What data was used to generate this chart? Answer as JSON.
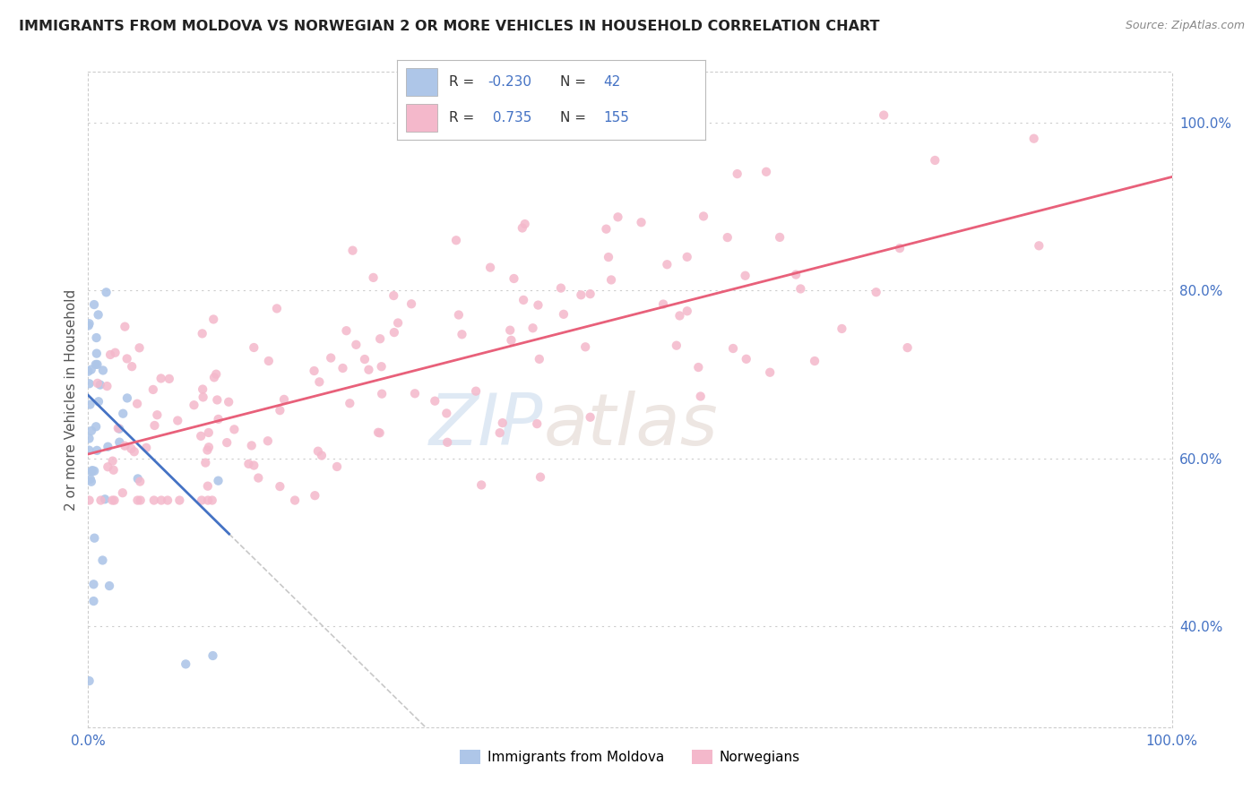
{
  "title": "IMMIGRANTS FROM MOLDOVA VS NORWEGIAN 2 OR MORE VEHICLES IN HOUSEHOLD CORRELATION CHART",
  "source": "Source: ZipAtlas.com",
  "ylabel": "2 or more Vehicles in Household",
  "legend_label1": "Immigrants from Moldova",
  "legend_label2": "Norwegians",
  "r1": -0.23,
  "n1": 42,
  "r2": 0.735,
  "n2": 155,
  "color_moldova": "#aec6e8",
  "color_norwegian": "#f4b8cb",
  "color_line_moldova": "#4472c4",
  "color_line_norwegian": "#e8607a",
  "color_dashed": "#c8c8c8",
  "watermark_zip": "ZIP",
  "watermark_atlas": "atlas",
  "background": "#ffffff",
  "xlim": [
    0.0,
    1.0
  ],
  "ylim": [
    0.28,
    1.06
  ],
  "ytick_vals": [
    0.4,
    0.6,
    0.8,
    1.0
  ],
  "ytick_labels": [
    "40.0%",
    "60.0%",
    "80.0%",
    "100.0%"
  ],
  "xtick_vals": [
    0.0,
    1.0
  ],
  "xtick_labels": [
    "0.0%",
    "100.0%"
  ],
  "moldova_line_x0": 0.0,
  "moldova_line_y0": 0.675,
  "moldova_line_x1": 0.13,
  "moldova_line_y1": 0.51,
  "norwegian_line_x0": 0.0,
  "norwegian_line_y0": 0.605,
  "norwegian_line_x1": 1.0,
  "norwegian_line_y1": 0.935
}
